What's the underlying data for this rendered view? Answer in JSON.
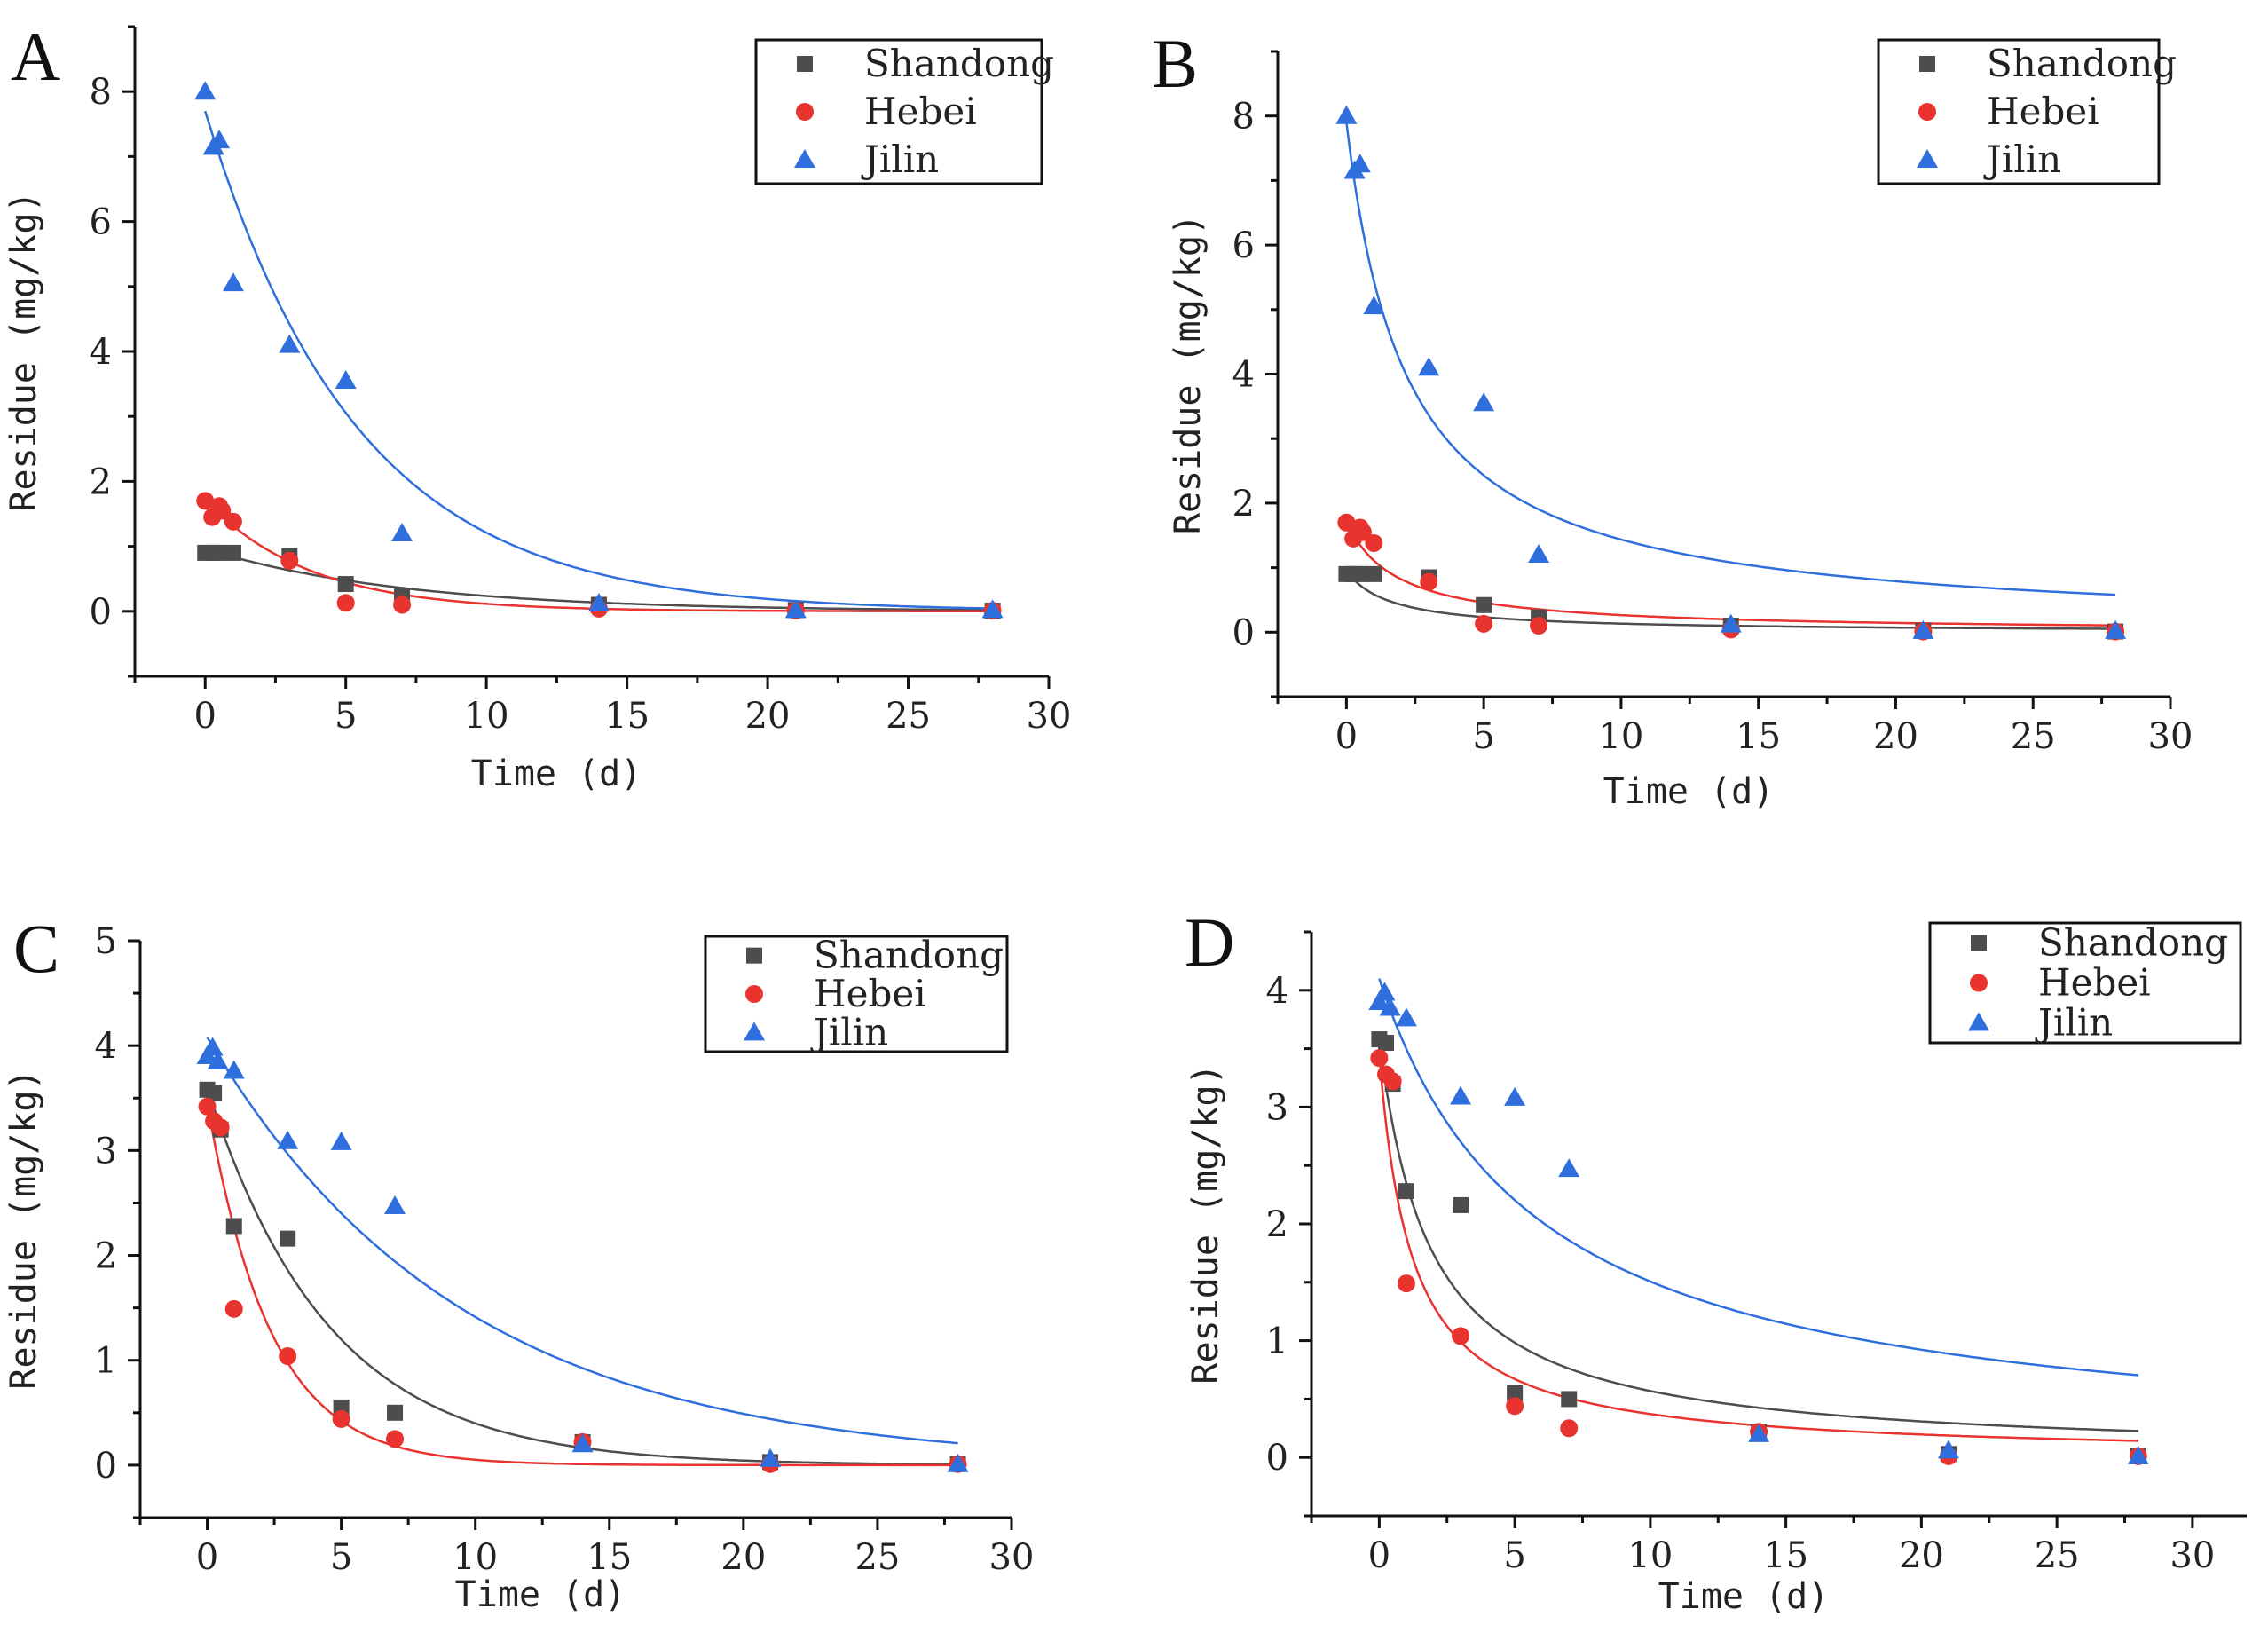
{
  "chart_data": [
    {
      "type": "scatter",
      "panel_label": "A",
      "xlabel": "Time (d)",
      "ylabel": "Residue (mg/kg)",
      "xlim": [
        -2.5,
        30
      ],
      "ylim": [
        -1,
        9
      ],
      "xticks": [
        "0",
        "5",
        "10",
        "15",
        "20",
        "25",
        "30"
      ],
      "yticks": [
        "0",
        "2",
        "4",
        "6",
        "8"
      ],
      "legend_position": "top-right",
      "series": [
        {
          "name": "Shandong",
          "marker": "square",
          "color": "#4d4d4d",
          "points": [
            [
              0,
              0.9
            ],
            [
              0.25,
              0.9
            ],
            [
              0.5,
              0.9
            ],
            [
              1,
              0.9
            ],
            [
              3,
              0.85
            ],
            [
              5,
              0.42
            ],
            [
              7,
              0.23
            ],
            [
              14,
              0.1
            ],
            [
              21,
              0.02
            ],
            [
              28,
              0.01
            ]
          ],
          "fit": {
            "model": "first-order",
            "c0": 0.96,
            "k": 0.14
          }
        },
        {
          "name": "Hebei",
          "marker": "circle",
          "color": "#e8332f",
          "points": [
            [
              0,
              1.7
            ],
            [
              0.25,
              1.45
            ],
            [
              0.5,
              1.62
            ],
            [
              0.6,
              1.55
            ],
            [
              1,
              1.38
            ],
            [
              3,
              0.78
            ],
            [
              5,
              0.13
            ],
            [
              7,
              0.1
            ],
            [
              14,
              0.04
            ],
            [
              21,
              0.01
            ],
            [
              28,
              0.01
            ]
          ],
          "fit": {
            "model": "first-order",
            "c0": 1.72,
            "k": 0.27
          }
        },
        {
          "name": "Jilin",
          "marker": "triangle",
          "color": "#2f6fdd",
          "points": [
            [
              0,
              8.0
            ],
            [
              0.3,
              7.15
            ],
            [
              0.5,
              7.25
            ],
            [
              1,
              5.05
            ],
            [
              3,
              4.1
            ],
            [
              5,
              3.55
            ],
            [
              7,
              1.2
            ],
            [
              14,
              0.12
            ],
            [
              21,
              0.02
            ],
            [
              28,
              0.02
            ]
          ],
          "fit": {
            "model": "first-order",
            "c0": 7.7,
            "k": 0.185
          }
        }
      ]
    },
    {
      "type": "scatter",
      "panel_label": "B",
      "xlabel": "Time (d)",
      "ylabel": "Residue (mg/kg)",
      "xlim": [
        -2.5,
        30
      ],
      "ylim": [
        -1,
        9
      ],
      "xticks": [
        "0",
        "5",
        "10",
        "15",
        "20",
        "25",
        "30"
      ],
      "yticks": [
        "0",
        "2",
        "4",
        "6",
        "8"
      ],
      "legend_position": "top-right",
      "series": [
        {
          "name": "Shandong",
          "marker": "square",
          "color": "#4d4d4d",
          "points": [
            [
              0,
              0.9
            ],
            [
              0.25,
              0.9
            ],
            [
              0.5,
              0.9
            ],
            [
              1,
              0.9
            ],
            [
              3,
              0.85
            ],
            [
              5,
              0.42
            ],
            [
              7,
              0.23
            ],
            [
              14,
              0.1
            ],
            [
              21,
              0.02
            ],
            [
              28,
              0.01
            ]
          ],
          "fit": {
            "model": "second-order",
            "c0": 0.95,
            "k": 0.65
          }
        },
        {
          "name": "Hebei",
          "marker": "circle",
          "color": "#e8332f",
          "points": [
            [
              0,
              1.7
            ],
            [
              0.25,
              1.45
            ],
            [
              0.5,
              1.62
            ],
            [
              0.6,
              1.55
            ],
            [
              1,
              1.38
            ],
            [
              3,
              0.78
            ],
            [
              5,
              0.13
            ],
            [
              7,
              0.1
            ],
            [
              14,
              0.04
            ],
            [
              21,
              0.01
            ],
            [
              28,
              0.01
            ]
          ],
          "fit": {
            "model": "second-order",
            "c0": 1.72,
            "k": 0.32
          }
        },
        {
          "name": "Jilin",
          "marker": "triangle",
          "color": "#2f6fdd",
          "points": [
            [
              0,
              8.0
            ],
            [
              0.3,
              7.15
            ],
            [
              0.5,
              7.25
            ],
            [
              1,
              5.05
            ],
            [
              3,
              4.1
            ],
            [
              5,
              3.55
            ],
            [
              7,
              1.2
            ],
            [
              14,
              0.12
            ],
            [
              21,
              0.02
            ],
            [
              28,
              0.02
            ]
          ],
          "fit": {
            "model": "second-order",
            "c0": 7.9,
            "k": 0.057
          }
        }
      ]
    },
    {
      "type": "scatter",
      "panel_label": "C",
      "xlabel": "Time (d)",
      "ylabel": "Residue (mg/kg)",
      "xlim": [
        -2.5,
        30
      ],
      "ylim": [
        -0.5,
        5
      ],
      "xticks": [
        "0",
        "5",
        "10",
        "15",
        "20",
        "25",
        "30"
      ],
      "yticks": [
        "0",
        "1",
        "2",
        "3",
        "4",
        "5"
      ],
      "legend_position": "top-right",
      "series": [
        {
          "name": "Shandong",
          "marker": "square",
          "color": "#4d4d4d",
          "points": [
            [
              0,
              3.58
            ],
            [
              0.25,
              3.55
            ],
            [
              0.5,
              3.2
            ],
            [
              1,
              2.28
            ],
            [
              3,
              2.16
            ],
            [
              5,
              0.55
            ],
            [
              7,
              0.5
            ],
            [
              14,
              0.22
            ],
            [
              21,
              0.03
            ],
            [
              28,
              0.01
            ]
          ],
          "fit": {
            "model": "first-order",
            "c0": 3.6,
            "k": 0.22
          }
        },
        {
          "name": "Hebei",
          "marker": "circle",
          "color": "#e8332f",
          "points": [
            [
              0,
              3.42
            ],
            [
              0.25,
              3.28
            ],
            [
              0.5,
              3.22
            ],
            [
              1,
              1.49
            ],
            [
              3,
              1.04
            ],
            [
              5,
              0.44
            ],
            [
              7,
              0.25
            ],
            [
              14,
              0.22
            ],
            [
              21,
              0.01
            ],
            [
              28,
              0.01
            ]
          ],
          "fit": {
            "model": "first-order",
            "c0": 3.45,
            "k": 0.42
          }
        },
        {
          "name": "Jilin",
          "marker": "triangle",
          "color": "#2f6fdd",
          "points": [
            [
              0,
              3.9
            ],
            [
              0.2,
              3.98
            ],
            [
              0.4,
              3.85
            ],
            [
              1,
              3.76
            ],
            [
              3,
              3.09
            ],
            [
              5,
              3.08
            ],
            [
              7,
              2.47
            ],
            [
              14,
              0.2
            ],
            [
              21,
              0.06
            ],
            [
              28,
              0.01
            ]
          ],
          "fit": {
            "model": "first-order",
            "c0": 4.08,
            "k": 0.106
          }
        }
      ]
    },
    {
      "type": "scatter",
      "panel_label": "D",
      "xlabel": "Time (d)",
      "ylabel": "Residue (mg/kg)",
      "xlim": [
        -2.5,
        32
      ],
      "ylim": [
        -0.5,
        4.5
      ],
      "xticks": [
        "0",
        "5",
        "10",
        "15",
        "20",
        "25",
        "30"
      ],
      "yticks": [
        "0",
        "1",
        "2",
        "3",
        "4"
      ],
      "legend_position": "top-right",
      "series": [
        {
          "name": "Shandong",
          "marker": "square",
          "color": "#4d4d4d",
          "points": [
            [
              0,
              3.58
            ],
            [
              0.25,
              3.55
            ],
            [
              0.5,
              3.2
            ],
            [
              1,
              2.28
            ],
            [
              3,
              2.16
            ],
            [
              5,
              0.55
            ],
            [
              7,
              0.5
            ],
            [
              14,
              0.22
            ],
            [
              21,
              0.03
            ],
            [
              28,
              0.01
            ]
          ],
          "fit": {
            "model": "second-order",
            "c0": 3.6,
            "k": 0.148
          }
        },
        {
          "name": "Hebei",
          "marker": "circle",
          "color": "#e8332f",
          "points": [
            [
              0,
              3.42
            ],
            [
              0.25,
              3.28
            ],
            [
              0.5,
              3.22
            ],
            [
              1,
              1.49
            ],
            [
              3,
              1.04
            ],
            [
              5,
              0.44
            ],
            [
              7,
              0.25
            ],
            [
              14,
              0.22
            ],
            [
              21,
              0.01
            ],
            [
              28,
              0.01
            ]
          ],
          "fit": {
            "model": "second-order",
            "c0": 3.45,
            "k": 0.24
          }
        },
        {
          "name": "Jilin",
          "marker": "triangle",
          "color": "#2f6fdd",
          "points": [
            [
              0,
              3.9
            ],
            [
              0.2,
              3.98
            ],
            [
              0.4,
              3.85
            ],
            [
              1,
              3.76
            ],
            [
              3,
              3.09
            ],
            [
              5,
              3.08
            ],
            [
              7,
              2.47
            ],
            [
              14,
              0.2
            ],
            [
              21,
              0.06
            ],
            [
              28,
              0.01
            ]
          ],
          "fit": {
            "model": "second-order",
            "c0": 4.1,
            "k": 0.042
          }
        }
      ]
    }
  ]
}
